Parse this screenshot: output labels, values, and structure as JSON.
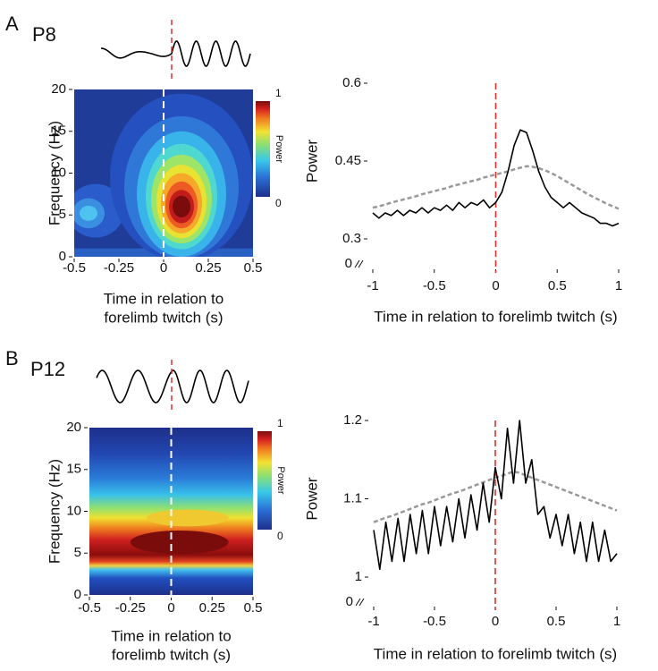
{
  "panels": [
    {
      "letter": "A",
      "age": "P8"
    },
    {
      "letter": "B",
      "age": "P12"
    }
  ],
  "chart_data": [
    {
      "type": "heatmap",
      "ylabel": "Frequency (Hz)",
      "xlabel": [
        "Time in relation to",
        "forelimb twitch (s)"
      ],
      "xlim": [
        -0.5,
        0.5
      ],
      "xticks": [
        -0.5,
        -0.25,
        0,
        0.25,
        0.5
      ],
      "ylim": [
        0,
        20
      ],
      "yticks": [
        0,
        5,
        10,
        15,
        20
      ],
      "colorbar": {
        "label": "Power",
        "ticks": [
          0,
          1
        ]
      },
      "event_line": {
        "x": 0,
        "color": "#ffffff"
      }
    },
    {
      "type": "line",
      "ylabel": "Power",
      "xlabel": "Time in relation to forelimb twitch (s)",
      "xlim": [
        -1,
        1
      ],
      "xticks": [
        -1,
        -0.5,
        0,
        0.5,
        1
      ],
      "ylim": [
        0.3,
        0.6
      ],
      "yticks": [
        0.3,
        0.45,
        0.6
      ],
      "axis_break_label": 0,
      "event_line": {
        "x": 0,
        "color": "#e03030"
      },
      "x": [
        -1,
        -0.95,
        -0.9,
        -0.85,
        -0.8,
        -0.75,
        -0.7,
        -0.65,
        -0.6,
        -0.55,
        -0.5,
        -0.45,
        -0.4,
        -0.35,
        -0.3,
        -0.25,
        -0.2,
        -0.15,
        -0.1,
        -0.05,
        0,
        0.05,
        0.1,
        0.15,
        0.2,
        0.25,
        0.3,
        0.35,
        0.4,
        0.45,
        0.5,
        0.55,
        0.6,
        0.65,
        0.7,
        0.75,
        0.8,
        0.85,
        0.9,
        0.95,
        1
      ],
      "series": [
        {
          "color": "#000000",
          "dash": false,
          "values": [
            0.35,
            0.34,
            0.35,
            0.345,
            0.355,
            0.345,
            0.355,
            0.35,
            0.36,
            0.35,
            0.36,
            0.355,
            0.365,
            0.355,
            0.37,
            0.36,
            0.37,
            0.365,
            0.375,
            0.36,
            0.37,
            0.39,
            0.43,
            0.48,
            0.51,
            0.505,
            0.47,
            0.43,
            0.4,
            0.38,
            0.37,
            0.36,
            0.37,
            0.36,
            0.35,
            0.345,
            0.34,
            0.33,
            0.33,
            0.325,
            0.33
          ]
        },
        {
          "color": "#999999",
          "dash": true,
          "values": [
            0.36,
            0.363,
            0.366,
            0.37,
            0.373,
            0.376,
            0.379,
            0.382,
            0.386,
            0.389,
            0.392,
            0.395,
            0.398,
            0.402,
            0.405,
            0.408,
            0.411,
            0.414,
            0.418,
            0.421,
            0.424,
            0.427,
            0.43,
            0.434,
            0.437,
            0.44,
            0.439,
            0.436,
            0.432,
            0.427,
            0.421,
            0.414,
            0.407,
            0.4,
            0.393,
            0.386,
            0.38,
            0.374,
            0.368,
            0.363,
            0.358
          ]
        }
      ]
    },
    {
      "type": "heatmap",
      "ylabel": "Frequency (Hz)",
      "xlabel": [
        "Time in relation to",
        "forelimb twitch (s)"
      ],
      "xlim": [
        -0.5,
        0.5
      ],
      "xticks": [
        -0.5,
        -0.25,
        0,
        0.25,
        0.5
      ],
      "ylim": [
        0,
        20
      ],
      "yticks": [
        0,
        5,
        10,
        15,
        20
      ],
      "colorbar": {
        "label": "Power",
        "ticks": [
          0,
          1
        ]
      },
      "event_line": {
        "x": 0,
        "color": "#ffffff"
      }
    },
    {
      "type": "line",
      "ylabel": "Power",
      "xlabel": "Time in relation to forelimb twitch (s)",
      "xlim": [
        -1,
        1
      ],
      "xticks": [
        -1,
        -0.5,
        0,
        0.5,
        1
      ],
      "ylim": [
        1,
        1.2
      ],
      "yticks": [
        1,
        1.1,
        1.2
      ],
      "axis_break_label": 0,
      "event_line": {
        "x": 0,
        "color": "#e03030"
      },
      "x": [
        -1,
        -0.95,
        -0.9,
        -0.85,
        -0.8,
        -0.75,
        -0.7,
        -0.65,
        -0.6,
        -0.55,
        -0.5,
        -0.45,
        -0.4,
        -0.35,
        -0.3,
        -0.25,
        -0.2,
        -0.15,
        -0.1,
        -0.05,
        0,
        0.05,
        0.1,
        0.15,
        0.2,
        0.25,
        0.3,
        0.35,
        0.4,
        0.45,
        0.5,
        0.55,
        0.6,
        0.65,
        0.7,
        0.75,
        0.8,
        0.85,
        0.9,
        0.95,
        1
      ],
      "series": [
        {
          "color": "#000000",
          "dash": false,
          "values": [
            1.06,
            1.01,
            1.07,
            1.02,
            1.075,
            1.02,
            1.08,
            1.03,
            1.085,
            1.03,
            1.09,
            1.04,
            1.09,
            1.045,
            1.1,
            1.05,
            1.105,
            1.06,
            1.12,
            1.07,
            1.14,
            1.1,
            1.19,
            1.12,
            1.2,
            1.12,
            1.15,
            1.08,
            1.09,
            1.05,
            1.08,
            1.04,
            1.08,
            1.03,
            1.07,
            1.02,
            1.07,
            1.02,
            1.06,
            1.02,
            1.03
          ]
        },
        {
          "color": "#999999",
          "dash": true,
          "values": [
            1.07,
            1.073,
            1.076,
            1.078,
            1.081,
            1.084,
            1.087,
            1.09,
            1.093,
            1.095,
            1.098,
            1.101,
            1.104,
            1.107,
            1.109,
            1.112,
            1.115,
            1.118,
            1.121,
            1.124,
            1.127,
            1.129,
            1.132,
            1.135,
            1.133,
            1.13,
            1.127,
            1.124,
            1.121,
            1.118,
            1.115,
            1.112,
            1.109,
            1.106,
            1.103,
            1.1,
            1.097,
            1.094,
            1.091,
            1.088,
            1.085
          ]
        }
      ]
    }
  ]
}
